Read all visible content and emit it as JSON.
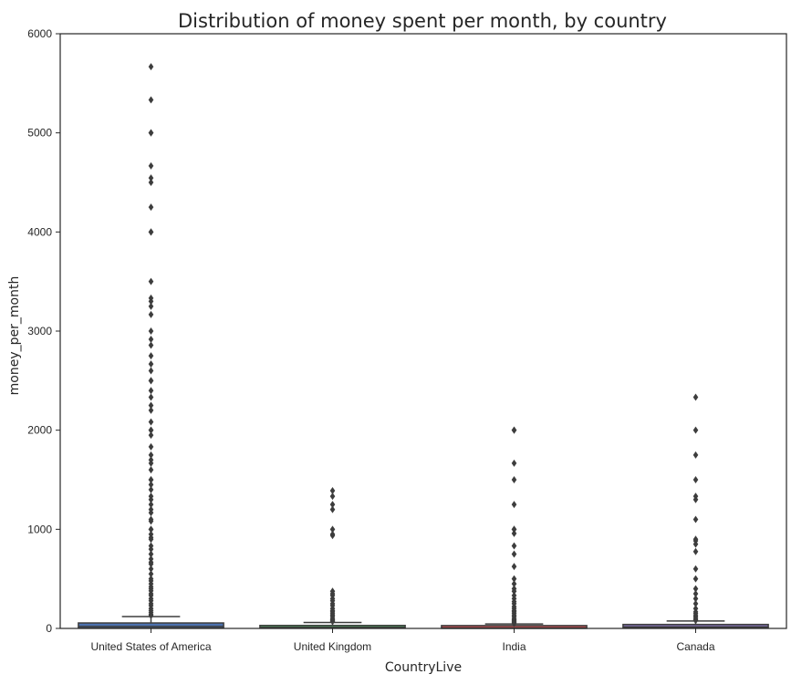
{
  "chart_data": {
    "type": "box",
    "title": "Distribution of money spent per month, by country",
    "xlabel": "CountryLive",
    "ylabel": "money_per_month",
    "ylim": [
      0,
      6000
    ],
    "yticks": [
      0,
      1000,
      2000,
      3000,
      4000,
      5000,
      6000
    ],
    "grid": false,
    "categories": [
      "United States of America",
      "United Kingdom",
      "India",
      "Canada"
    ],
    "box_colors": [
      "#4c72b0",
      "#55a868",
      "#c44e52",
      "#8172b2"
    ],
    "boxes": [
      {
        "category": "United States of America",
        "q1": 3,
        "median": 20,
        "q3": 55,
        "whisker_low": 0,
        "whisker_high": 120,
        "outliers": [
          5667,
          5333,
          5000,
          5000,
          4667,
          4545,
          4500,
          4250,
          4000,
          4000,
          3500,
          3333,
          3300,
          3250,
          3167,
          3000,
          2917,
          2857,
          2750,
          2667,
          2600,
          2500,
          2500,
          2400,
          2333,
          2250,
          2200,
          2083,
          2000,
          2000,
          1950,
          1833,
          1750,
          1700,
          1667,
          1600,
          1500,
          1500,
          1450,
          1400,
          1333,
          1300,
          1250,
          1200,
          1167,
          1100,
          1083,
          1000,
          1000,
          950,
          917,
          900,
          833,
          800,
          750,
          700,
          667,
          650,
          600,
          550,
          500,
          480,
          450,
          420,
          400,
          380,
          350,
          333,
          300,
          280,
          250,
          230,
          200,
          180,
          160,
          140,
          130
        ]
      },
      {
        "category": "United Kingdom",
        "q1": 2,
        "median": 10,
        "q3": 30,
        "whisker_low": 0,
        "whisker_high": 60,
        "outliers": [
          1389,
          1333,
          1250,
          1200,
          1000,
          950,
          938,
          375,
          350,
          333,
          300,
          280,
          250,
          230,
          200,
          180,
          167,
          150,
          133,
          120,
          100,
          90,
          80,
          70
        ]
      },
      {
        "category": "India",
        "q1": 1,
        "median": 5,
        "q3": 20,
        "whisker_low": 0,
        "whisker_high": 45,
        "outliers": [
          2000,
          2000,
          1667,
          1500,
          1250,
          1000,
          1000,
          958,
          833,
          750,
          625,
          500,
          450,
          400,
          375,
          333,
          300,
          270,
          250,
          220,
          200,
          180,
          167,
          150,
          130,
          120,
          100,
          90,
          80,
          70,
          60,
          50
        ]
      },
      {
        "category": "Canada",
        "q1": 3,
        "median": 15,
        "q3": 40,
        "whisker_low": 0,
        "whisker_high": 75,
        "outliers": [
          2333,
          2000,
          1750,
          1500,
          1333,
          1300,
          1100,
          900,
          883,
          850,
          775,
          600,
          500,
          400,
          350,
          300,
          250,
          200,
          167,
          150,
          130,
          117,
          100,
          90,
          80
        ]
      }
    ]
  }
}
